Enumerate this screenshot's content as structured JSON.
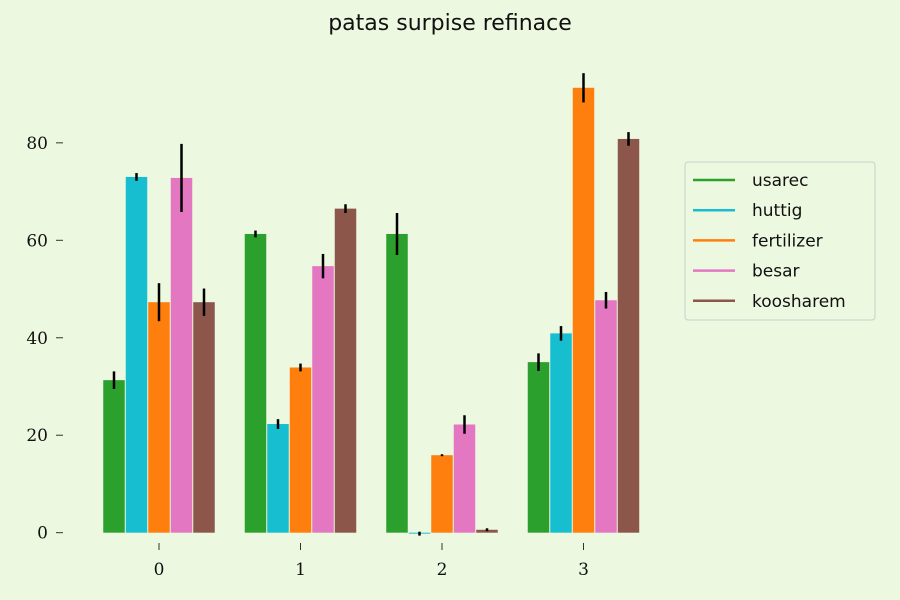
{
  "chart_data": {
    "type": "bar",
    "title": "patas surpise refinace",
    "xlabel": "",
    "ylabel": "",
    "categories": [
      "0",
      "1",
      "2",
      "3"
    ],
    "ylim": [
      -1.5,
      97
    ],
    "yticks": [
      0,
      20,
      40,
      60,
      80
    ],
    "ytick_labels": [
      "0",
      "20",
      "40",
      "60",
      "80"
    ],
    "grid": false,
    "legend_position": "right",
    "series": [
      {
        "name": "usarec",
        "color": "#2ca02c",
        "values": [
          31.3,
          61.3,
          61.3,
          35.0
        ],
        "errors": [
          1.8,
          0.7,
          4.3,
          1.8
        ]
      },
      {
        "name": "huttig",
        "color": "#17becf",
        "values": [
          73.0,
          22.3,
          -0.2,
          40.9
        ],
        "errors": [
          0.8,
          1.0,
          0.4,
          1.5
        ]
      },
      {
        "name": "fertilizer",
        "color": "#ff7f0e",
        "values": [
          47.3,
          33.9,
          15.9,
          91.3
        ],
        "errors": [
          3.9,
          0.8,
          0.2,
          3.0
        ]
      },
      {
        "name": "besar",
        "color": "#e377c2",
        "values": [
          72.8,
          54.7,
          22.2,
          47.7
        ],
        "errors": [
          7.0,
          2.5,
          1.9,
          1.7
        ]
      },
      {
        "name": "koosharem",
        "color": "#8c564b",
        "values": [
          47.3,
          66.5,
          0.6,
          80.8
        ],
        "errors": [
          2.8,
          0.9,
          0.3,
          1.4
        ]
      }
    ]
  }
}
